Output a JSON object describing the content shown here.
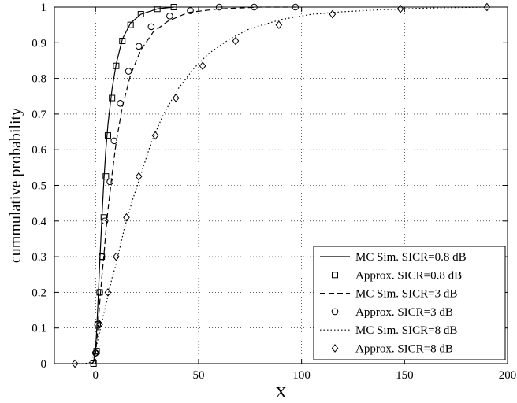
{
  "chart_data": {
    "type": "line",
    "title": "",
    "xlabel": "X",
    "ylabel": "cummulative probability",
    "xlim": [
      -20,
      200
    ],
    "ylim": [
      0,
      1
    ],
    "xticks": [
      0,
      50,
      100,
      150,
      200
    ],
    "xtick_labels": [
      "0",
      "50",
      "100",
      "150",
      "200"
    ],
    "yticks": [
      0,
      0.1,
      0.2,
      0.3,
      0.4,
      0.5,
      0.6,
      0.7,
      0.8,
      0.9,
      1
    ],
    "ytick_labels": [
      "0",
      "0.1",
      "0.2",
      "0.3",
      "0.4",
      "0.5",
      "0.6",
      "0.7",
      "0.8",
      "0.9",
      "1"
    ],
    "grid": true,
    "legend_position": "bottom-right",
    "series": [
      {
        "name": "MC Sim. SICR=0.8 dB",
        "style": "solid",
        "marker": "none",
        "x": [
          -2,
          -1,
          0,
          0.5,
          1,
          2,
          3,
          4,
          5,
          6,
          8,
          10,
          13,
          17,
          22,
          30,
          38
        ],
        "y": [
          0,
          0.005,
          0.04,
          0.09,
          0.15,
          0.28,
          0.4,
          0.51,
          0.6,
          0.67,
          0.77,
          0.84,
          0.91,
          0.955,
          0.98,
          0.995,
          1
        ]
      },
      {
        "name": "Approx. SICR=0.8 dB",
        "style": "none",
        "marker": "square",
        "x": [
          -1,
          0.5,
          1,
          2,
          3,
          4,
          5,
          6,
          8,
          10,
          13,
          17,
          22,
          30,
          38
        ],
        "y": [
          0,
          0.035,
          0.11,
          0.2,
          0.3,
          0.41,
          0.525,
          0.64,
          0.745,
          0.835,
          0.905,
          0.95,
          0.98,
          0.995,
          1
        ]
      },
      {
        "name": "MC Sim. SICR=3 dB",
        "style": "dashed",
        "marker": "none",
        "x": [
          -2,
          -1,
          0,
          1,
          2,
          3,
          4,
          5,
          6,
          8,
          10,
          13,
          17,
          22,
          28,
          35,
          45,
          60,
          80,
          97
        ],
        "y": [
          0,
          0.005,
          0.03,
          0.09,
          0.17,
          0.24,
          0.3,
          0.37,
          0.43,
          0.53,
          0.62,
          0.72,
          0.81,
          0.88,
          0.93,
          0.96,
          0.985,
          0.995,
          1,
          1
        ]
      },
      {
        "name": "Approx. SICR=3 dB",
        "style": "none",
        "marker": "circle",
        "x": [
          0,
          1,
          2,
          3,
          4.5,
          7,
          9,
          12,
          16,
          21,
          27,
          36,
          46,
          60,
          77,
          97
        ],
        "y": [
          0.03,
          0.11,
          0.2,
          0.3,
          0.4,
          0.51,
          0.625,
          0.73,
          0.82,
          0.89,
          0.945,
          0.975,
          0.99,
          1,
          1,
          1
        ]
      },
      {
        "name": "MC Sim. SICR=8 dB",
        "style": "dotted",
        "marker": "none",
        "x": [
          -10,
          -5,
          -2,
          0,
          2,
          4,
          6,
          8,
          10,
          14,
          18,
          22,
          27,
          33,
          40,
          48,
          55,
          65,
          75,
          90,
          105,
          120,
          140,
          160,
          190
        ],
        "y": [
          0,
          0,
          0.005,
          0.04,
          0.09,
          0.14,
          0.19,
          0.24,
          0.28,
          0.38,
          0.46,
          0.53,
          0.62,
          0.7,
          0.77,
          0.83,
          0.87,
          0.91,
          0.94,
          0.965,
          0.98,
          0.987,
          0.993,
          0.997,
          1
        ]
      },
      {
        "name": "Approx. SICR=8 dB",
        "style": "none",
        "marker": "diamond",
        "x": [
          -10,
          0,
          2,
          6,
          10,
          15,
          21,
          29,
          39,
          52,
          68,
          89,
          115,
          148,
          190
        ],
        "y": [
          0,
          0.03,
          0.11,
          0.2,
          0.3,
          0.41,
          0.525,
          0.64,
          0.745,
          0.835,
          0.905,
          0.95,
          0.98,
          0.995,
          1
        ]
      }
    ]
  }
}
